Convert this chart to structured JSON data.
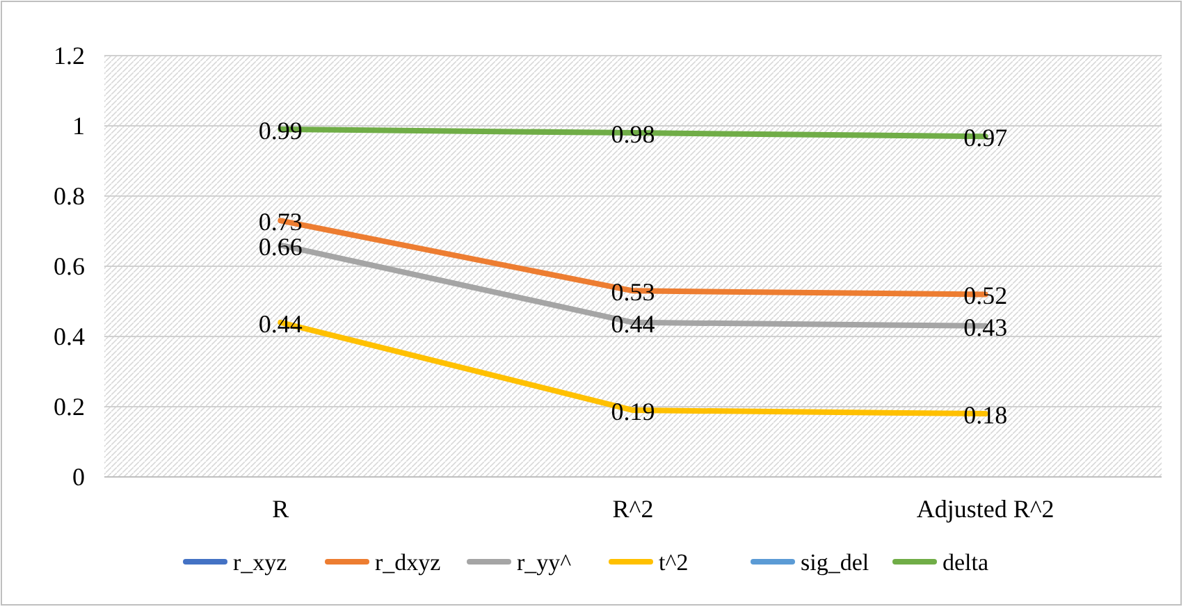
{
  "chart_data": {
    "type": "line",
    "categories": [
      "R",
      "R^2",
      "Adjusted R^2"
    ],
    "series": [
      {
        "name": "r_xyz",
        "color": "#4472c4",
        "values": [
          null,
          null,
          null
        ]
      },
      {
        "name": "r_dxyz",
        "color": "#ed7d31",
        "values": [
          0.73,
          0.53,
          0.52
        ]
      },
      {
        "name": "r_yy^",
        "color": "#a5a5a5",
        "values": [
          0.66,
          0.44,
          0.43
        ]
      },
      {
        "name": "t^2",
        "color": "#ffc000",
        "values": [
          0.44,
          0.19,
          0.18
        ]
      },
      {
        "name": "sig_del",
        "color": "#5b9bd5",
        "values": [
          null,
          null,
          null
        ]
      },
      {
        "name": "delta",
        "color": "#70ad47",
        "values": [
          0.99,
          0.98,
          0.97
        ]
      }
    ],
    "ylim": [
      0,
      1.2
    ],
    "yticks": [
      0,
      0.2,
      0.4,
      0.6,
      0.8,
      1,
      1.2
    ],
    "grid": "y",
    "legend": "bottom",
    "data_labels": true,
    "marker": "none",
    "line_style": "solid"
  }
}
